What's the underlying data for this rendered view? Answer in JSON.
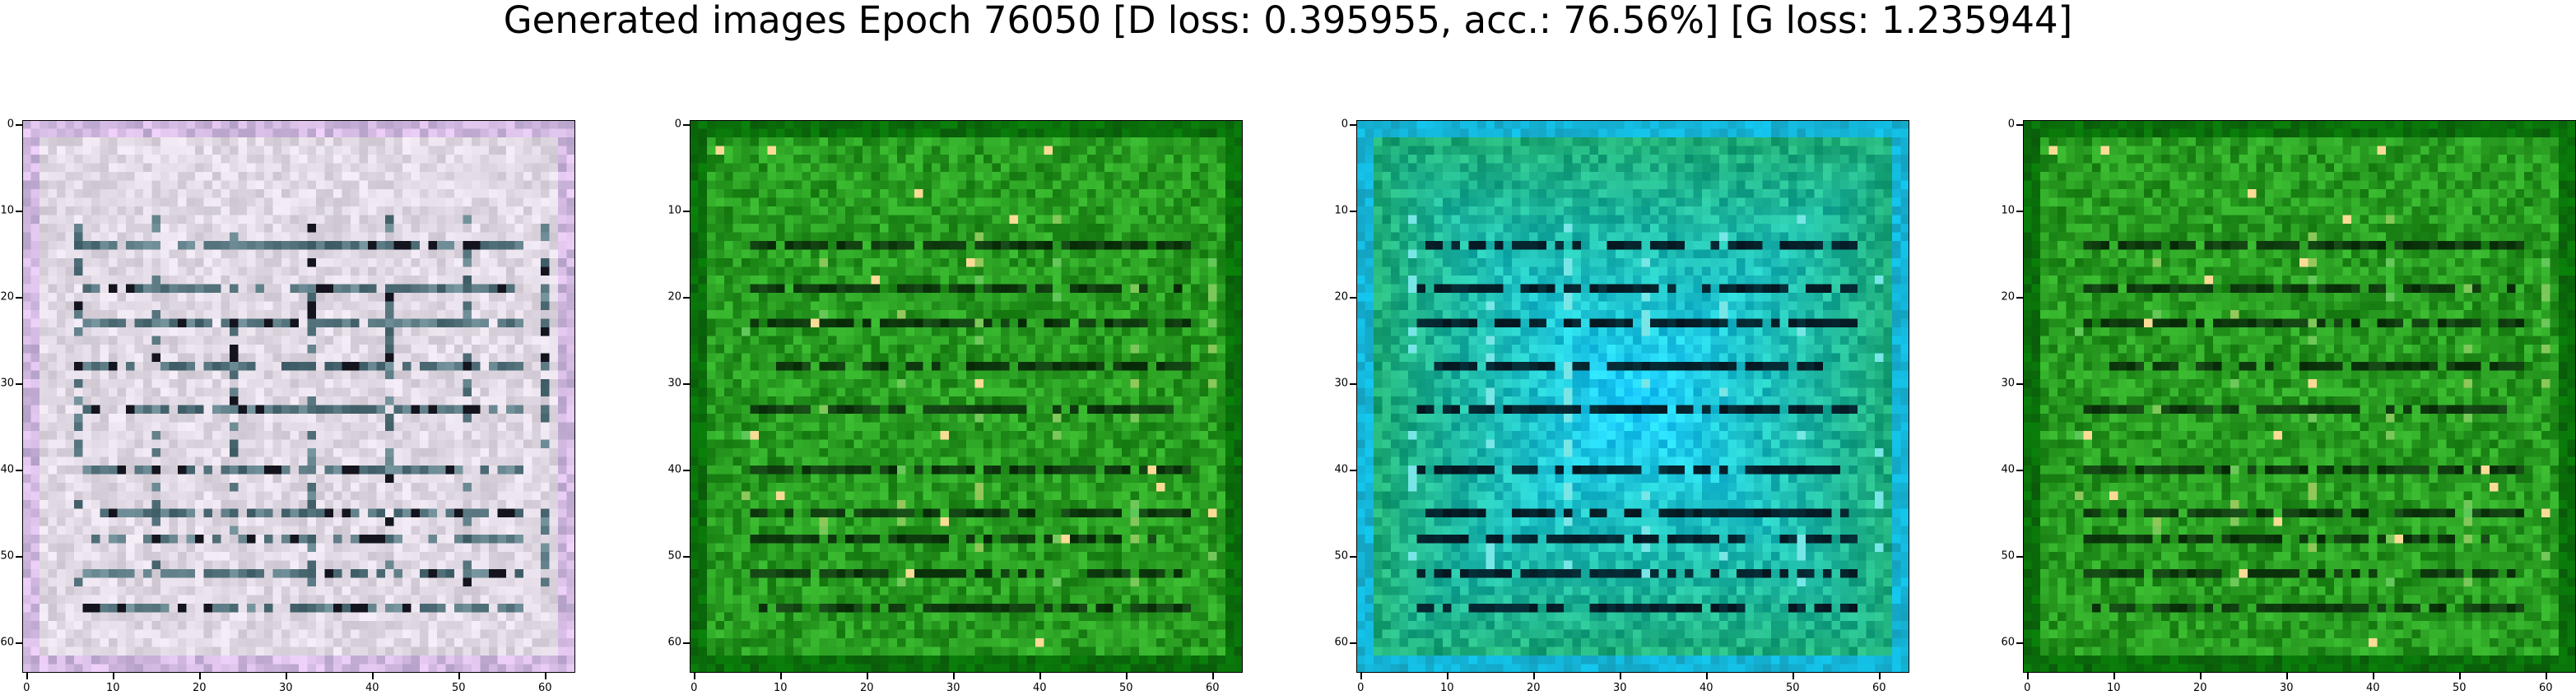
{
  "title": "Generated images Epoch 76050 [D loss: 0.395955, acc.: 76.56%] [G loss: 1.235944]",
  "axis_ticks": [
    "0",
    "10",
    "20",
    "30",
    "40",
    "50",
    "60"
  ],
  "tick_values": [
    0,
    10,
    20,
    30,
    40,
    50,
    60
  ],
  "image_size": 64,
  "panels": [
    {
      "theme": "lavender-gray",
      "base": "#d8d0dc",
      "accent": "#9fb8c4"
    },
    {
      "theme": "green",
      "base": "#1f9a1f",
      "accent": "#0f6a0f"
    },
    {
      "theme": "teal",
      "base": "#1aa07a",
      "accent": "#2ed0d8"
    },
    {
      "theme": "green",
      "base": "#1f9a1f",
      "accent": "#0f6a0f"
    }
  ]
}
